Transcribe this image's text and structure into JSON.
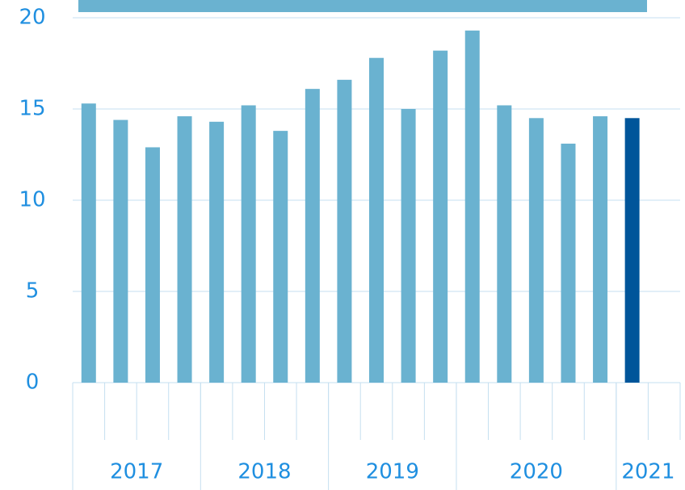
{
  "chart_data": {
    "type": "bar",
    "categories": [
      null,
      null,
      null,
      null,
      null,
      null,
      null,
      null,
      null,
      null,
      null,
      null,
      null,
      null,
      null,
      null,
      null,
      null,
      null
    ],
    "values": [
      15.3,
      14.4,
      12.9,
      14.6,
      14.3,
      15.2,
      13.8,
      16.1,
      16.6,
      17.8,
      15.0,
      18.2,
      19.3,
      15.2,
      14.5,
      13.1,
      14.6,
      14.5,
      null
    ],
    "colors": [
      "#6ab2d0",
      "#6ab2d0",
      "#6ab2d0",
      "#6ab2d0",
      "#6ab2d0",
      "#6ab2d0",
      "#6ab2d0",
      "#6ab2d0",
      "#6ab2d0",
      "#6ab2d0",
      "#6ab2d0",
      "#6ab2d0",
      "#6ab2d0",
      "#6ab2d0",
      "#6ab2d0",
      "#6ab2d0",
      "#6ab2d0",
      "#00559a",
      "#6ab2d0"
    ],
    "category_groups": [
      {
        "label": "2017",
        "size": 4
      },
      {
        "label": "2018",
        "size": 4
      },
      {
        "label": "2019",
        "size": 4
      },
      {
        "label": "2020",
        "size": 5
      },
      {
        "label": "2021",
        "size": 2
      }
    ],
    "ylim": [
      0,
      20
    ],
    "yticks": [
      0,
      5,
      10,
      15,
      20
    ],
    "grid": true
  }
}
